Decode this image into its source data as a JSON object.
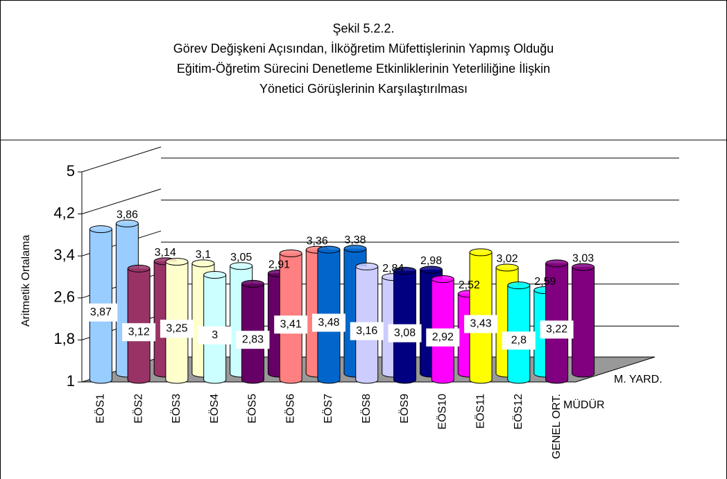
{
  "chart_data": {
    "type": "bar3d",
    "title": [
      "Şekil 5.2.2.",
      "Görev Değişkeni Açısından, İlköğretim Müfettişlerinin Yapmış Olduğu",
      "Eğitim-Öğretim Sürecini Denetleme Etkinliklerinin Yeterliliğine İlişkin",
      "Yönetici Görüşlerinin Karşılaştırılması"
    ],
    "y_label": "Aritmetik Ortalama",
    "categories": [
      "EÖS1",
      "EÖS2",
      "EÖS3",
      "EÖS4",
      "EÖS5",
      "EÖS6",
      "EÖS7",
      "EÖS8",
      "EÖS9",
      "EÖS10",
      "EÖS11",
      "EÖS12",
      "GENEL ORT."
    ],
    "colors": [
      "#99ccff",
      "#993366",
      "#ffffcc",
      "#ccffff",
      "#660066",
      "#ff8080",
      "#0066cc",
      "#ccccff",
      "#000080",
      "#ff00ff",
      "#ffff00",
      "#00ffff",
      "#800080"
    ],
    "series": [
      {
        "name": "M. YARD.",
        "values": [
          3.86,
          3.14,
          3.1,
          3.05,
          2.91,
          3.36,
          3.38,
          2.84,
          2.98,
          2.52,
          3.02,
          2.59,
          3.03
        ],
        "value_labels": [
          "3,86",
          "3,14",
          "3,1",
          "3,05",
          "2,91",
          "3,36",
          "3,38",
          "2,84",
          "2,98",
          "2,52",
          "3,02",
          "2,59",
          "3,03"
        ]
      },
      {
        "name": "MÜDÜR",
        "values": [
          3.87,
          3.12,
          3.25,
          3,
          2.83,
          3.41,
          3.48,
          3.16,
          3.08,
          2.92,
          3.43,
          2.8,
          3.22
        ],
        "value_labels": [
          "3,87",
          "3,12",
          "3,25",
          "3",
          "2,83",
          "3,41",
          "3,48",
          "3,16",
          "3,08",
          "2,92",
          "3,43",
          "2,8",
          "3,22"
        ]
      }
    ],
    "ylim": [
      1,
      5
    ],
    "yticks": [
      1,
      {
        "value": 1.8,
        "label": "1,8"
      },
      {
        "value": 2.6,
        "label": "2,6"
      },
      {
        "value": 3.4,
        "label": "3,4"
      },
      {
        "value": 4.2,
        "label": "4,2"
      },
      5
    ],
    "grid": true
  }
}
